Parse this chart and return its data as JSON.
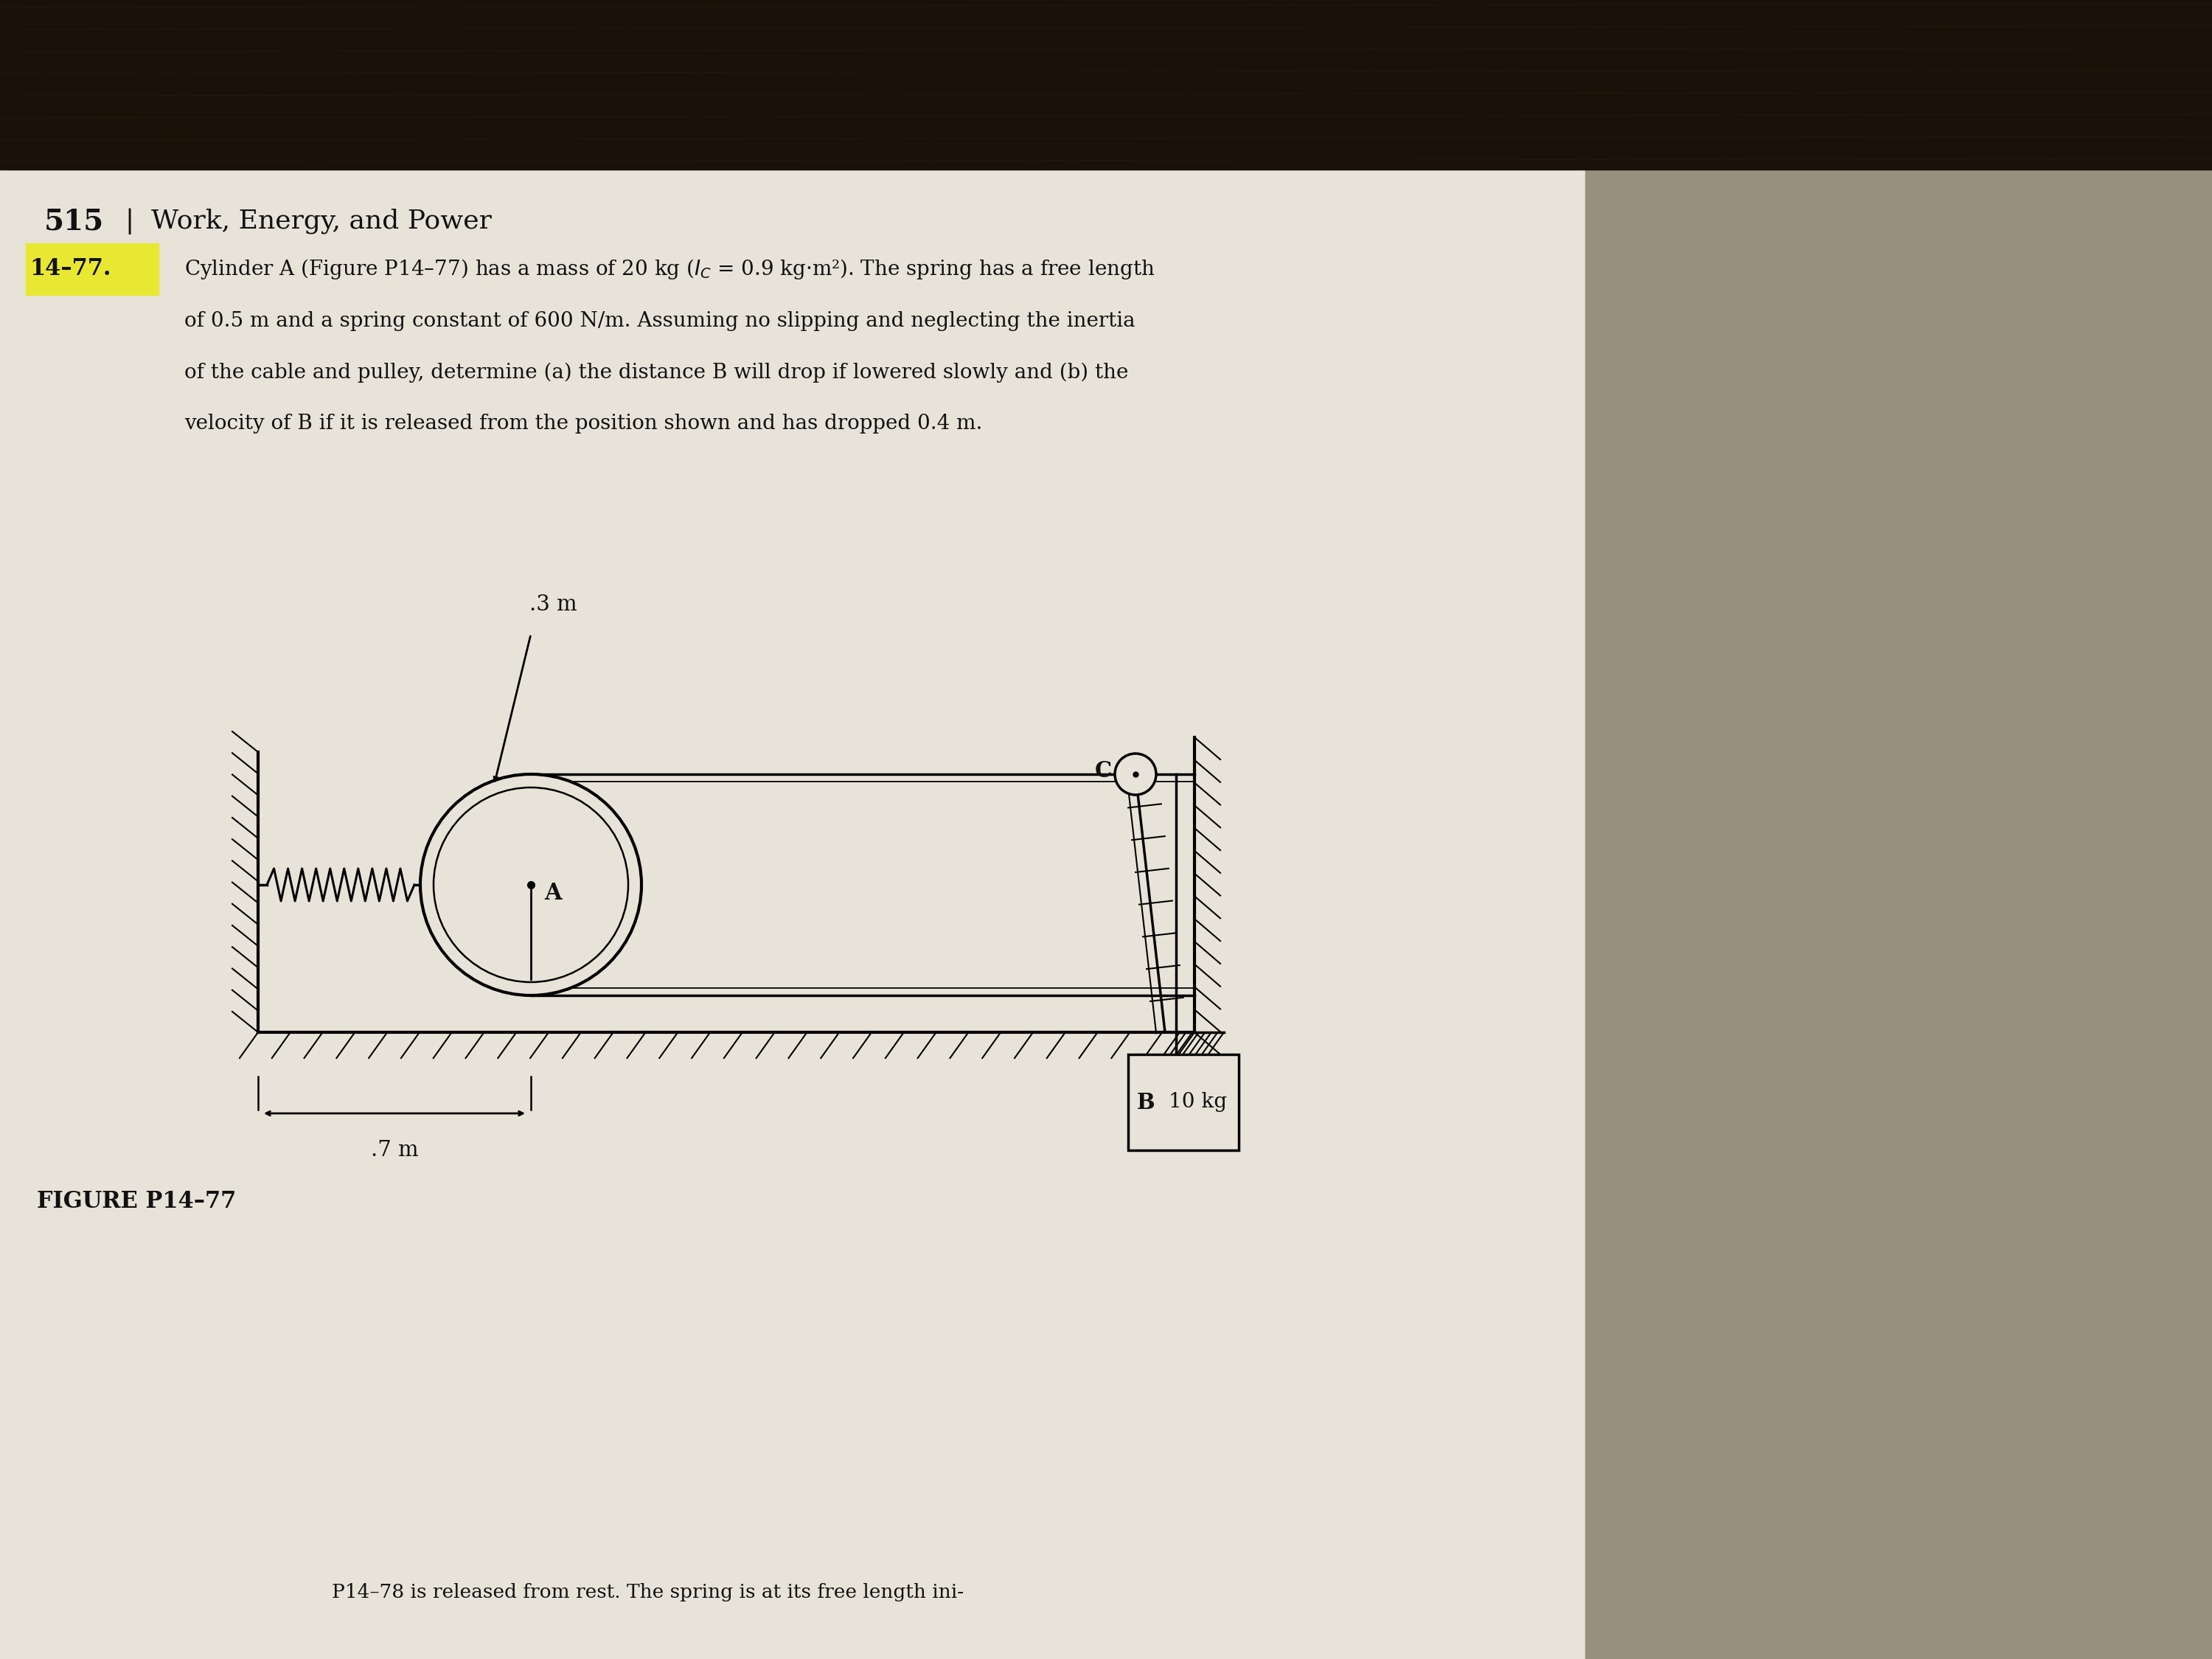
{
  "page_number": "515",
  "chapter_title": "Work, Energy, and Power",
  "problem_number": "14–77.",
  "problem_text_line1": "Cylinder A (Figure P14–77) has a mass of 20 kg ($I_C$ = 0.9 kg·m²). The spring has a free length",
  "problem_text_line2": "of 0.5 m and a spring constant of 600 N/m. Assuming no slipping and neglecting the inertia",
  "problem_text_line3": "of the cable and pulley, determine (a) the distance B will drop if lowered slowly and (b) the",
  "problem_text_line4": "velocity of B if it is released from the position shown and has dropped 0.4 m.",
  "dim_label_03m": ".3 m",
  "dim_label_07m": ".7 m",
  "label_A": "A",
  "label_B": "B",
  "label_C": "C",
  "label_mass": "10 kg",
  "figure_caption": "FIGURE P14–77",
  "bottom_text": "P14–78 is released from rest. The spring is at its free length ini-",
  "page_bg": "#ddd8cc",
  "paper_bg": "#e8e3d8",
  "dark_top": "#1a1209",
  "right_shadow": "#9a9080",
  "text_color": "#111111",
  "line_color": "#000000",
  "highlight_color": "#e8e832"
}
